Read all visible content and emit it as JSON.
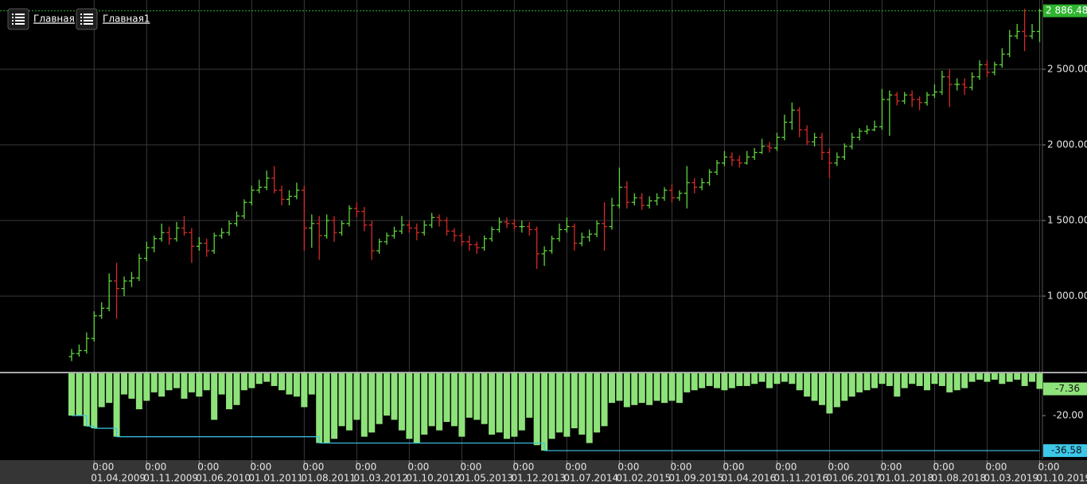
{
  "tabs": [
    "Главная",
    "Главная1"
  ],
  "chart_data": [
    {
      "type": "ohlc",
      "ohlc": [
        [
          600,
          650,
          570,
          620
        ],
        [
          620,
          680,
          600,
          640
        ],
        [
          640,
          760,
          620,
          720
        ],
        [
          720,
          900,
          700,
          870
        ],
        [
          870,
          960,
          850,
          920
        ],
        [
          920,
          1150,
          900,
          1100
        ],
        [
          1100,
          1220,
          850,
          1050
        ],
        [
          1050,
          1130,
          1000,
          1100
        ],
        [
          1100,
          1160,
          1060,
          1120
        ],
        [
          1120,
          1280,
          1100,
          1250
        ],
        [
          1250,
          1360,
          1230,
          1320
        ],
        [
          1320,
          1400,
          1290,
          1380
        ],
        [
          1380,
          1480,
          1360,
          1420
        ],
        [
          1420,
          1460,
          1340,
          1380
        ],
        [
          1380,
          1490,
          1360,
          1450
        ],
        [
          1450,
          1530,
          1400,
          1420
        ],
        [
          1420,
          1450,
          1220,
          1330
        ],
        [
          1330,
          1390,
          1300,
          1350
        ],
        [
          1350,
          1380,
          1260,
          1300
        ],
        [
          1300,
          1420,
          1280,
          1400
        ],
        [
          1400,
          1450,
          1380,
          1420
        ],
        [
          1420,
          1500,
          1400,
          1480
        ],
        [
          1480,
          1560,
          1460,
          1530
        ],
        [
          1530,
          1640,
          1510,
          1620
        ],
        [
          1620,
          1730,
          1600,
          1700
        ],
        [
          1700,
          1770,
          1680,
          1720
        ],
        [
          1720,
          1830,
          1700,
          1780
        ],
        [
          1780,
          1860,
          1680,
          1700
        ],
        [
          1700,
          1730,
          1600,
          1640
        ],
        [
          1640,
          1700,
          1600,
          1660
        ],
        [
          1660,
          1750,
          1640,
          1700
        ],
        [
          1700,
          1730,
          1300,
          1450
        ],
        [
          1450,
          1540,
          1320,
          1480
        ],
        [
          1480,
          1530,
          1240,
          1400
        ],
        [
          1400,
          1540,
          1380,
          1500
        ],
        [
          1500,
          1530,
          1360,
          1420
        ],
        [
          1420,
          1500,
          1400,
          1480
        ],
        [
          1480,
          1600,
          1460,
          1580
        ],
        [
          1580,
          1620,
          1520,
          1560
        ],
        [
          1560,
          1590,
          1430,
          1470
        ],
        [
          1470,
          1500,
          1240,
          1300
        ],
        [
          1300,
          1380,
          1280,
          1360
        ],
        [
          1360,
          1420,
          1340,
          1400
        ],
        [
          1400,
          1460,
          1380,
          1430
        ],
        [
          1430,
          1530,
          1410,
          1470
        ],
        [
          1470,
          1500,
          1420,
          1450
        ],
        [
          1450,
          1480,
          1370,
          1420
        ],
        [
          1420,
          1500,
          1400,
          1470
        ],
        [
          1470,
          1550,
          1450,
          1520
        ],
        [
          1520,
          1540,
          1460,
          1500
        ],
        [
          1500,
          1520,
          1400,
          1430
        ],
        [
          1430,
          1450,
          1360,
          1400
        ],
        [
          1400,
          1420,
          1330,
          1360
        ],
        [
          1360,
          1400,
          1300,
          1340
        ],
        [
          1340,
          1360,
          1280,
          1320
        ],
        [
          1320,
          1400,
          1300,
          1380
        ],
        [
          1380,
          1460,
          1360,
          1440
        ],
        [
          1440,
          1520,
          1420,
          1490
        ],
        [
          1490,
          1520,
          1450,
          1480
        ],
        [
          1480,
          1510,
          1440,
          1460
        ],
        [
          1460,
          1500,
          1420,
          1460
        ],
        [
          1460,
          1490,
          1400,
          1440
        ],
        [
          1440,
          1460,
          1180,
          1280
        ],
        [
          1280,
          1330,
          1200,
          1300
        ],
        [
          1300,
          1400,
          1280,
          1380
        ],
        [
          1380,
          1480,
          1360,
          1440
        ],
        [
          1440,
          1520,
          1420,
          1460
        ],
        [
          1460,
          1480,
          1300,
          1350
        ],
        [
          1350,
          1420,
          1330,
          1390
        ],
        [
          1390,
          1440,
          1360,
          1410
        ],
        [
          1410,
          1500,
          1390,
          1480
        ],
        [
          1480,
          1620,
          1300,
          1460
        ],
        [
          1460,
          1650,
          1440,
          1600
        ],
        [
          1600,
          1850,
          1580,
          1720
        ],
        [
          1720,
          1760,
          1580,
          1620
        ],
        [
          1620,
          1680,
          1600,
          1650
        ],
        [
          1650,
          1680,
          1570,
          1600
        ],
        [
          1600,
          1660,
          1580,
          1630
        ],
        [
          1630,
          1680,
          1600,
          1650
        ],
        [
          1650,
          1720,
          1630,
          1700
        ],
        [
          1700,
          1740,
          1620,
          1650
        ],
        [
          1650,
          1700,
          1630,
          1680
        ],
        [
          1680,
          1860,
          1580,
          1750
        ],
        [
          1750,
          1780,
          1680,
          1720
        ],
        [
          1720,
          1780,
          1700,
          1750
        ],
        [
          1750,
          1840,
          1730,
          1820
        ],
        [
          1820,
          1900,
          1800,
          1880
        ],
        [
          1880,
          1960,
          1860,
          1920
        ],
        [
          1920,
          1950,
          1860,
          1900
        ],
        [
          1900,
          1930,
          1850,
          1880
        ],
        [
          1880,
          1960,
          1870,
          1920
        ],
        [
          1920,
          1980,
          1900,
          1950
        ],
        [
          1950,
          2040,
          1940,
          1990
        ],
        [
          1990,
          2020,
          1950,
          1980
        ],
        [
          1980,
          2080,
          1960,
          2050
        ],
        [
          2050,
          2200,
          2030,
          2150
        ],
        [
          2150,
          2280,
          2100,
          2230
        ],
        [
          2230,
          2250,
          2050,
          2100
        ],
        [
          2100,
          2130,
          2000,
          2020
        ],
        [
          2020,
          2080,
          1990,
          2050
        ],
        [
          2050,
          2080,
          1900,
          1950
        ],
        [
          1950,
          1980,
          1780,
          1880
        ],
        [
          1880,
          1950,
          1860,
          1920
        ],
        [
          1920,
          2010,
          1900,
          1990
        ],
        [
          1990,
          2080,
          1970,
          2050
        ],
        [
          2050,
          2110,
          2030,
          2090
        ],
        [
          2090,
          2130,
          2070,
          2100
        ],
        [
          2100,
          2160,
          2090,
          2120
        ],
        [
          2120,
          2370,
          2100,
          2300
        ],
        [
          2300,
          2360,
          2060,
          2330
        ],
        [
          2330,
          2350,
          2260,
          2290
        ],
        [
          2290,
          2350,
          2270,
          2330
        ],
        [
          2330,
          2360,
          2250,
          2300
        ],
        [
          2300,
          2320,
          2230,
          2280
        ],
        [
          2280,
          2350,
          2260,
          2330
        ],
        [
          2330,
          2400,
          2310,
          2350
        ],
        [
          2350,
          2490,
          2330,
          2450
        ],
        [
          2450,
          2500,
          2250,
          2400
        ],
        [
          2400,
          2440,
          2360,
          2400
        ],
        [
          2400,
          2440,
          2330,
          2380
        ],
        [
          2380,
          2480,
          2360,
          2450
        ],
        [
          2450,
          2560,
          2430,
          2530
        ],
        [
          2530,
          2560,
          2450,
          2480
        ],
        [
          2480,
          2550,
          2460,
          2530
        ],
        [
          2530,
          2640,
          2510,
          2600
        ],
        [
          2600,
          2760,
          2580,
          2720
        ],
        [
          2720,
          2800,
          2700,
          2750
        ],
        [
          2750,
          2900,
          2620,
          2720
        ],
        [
          2720,
          2800,
          2700,
          2750
        ],
        [
          2750,
          2900,
          2680,
          2886.48
        ]
      ],
      "up_color": "#5fd43c",
      "down_color": "#d42a2a",
      "last_close_label": "2 886.48",
      "last_color": "#2fb52f",
      "ylim": [
        500,
        2958
      ],
      "yticks": [
        {
          "value": 1000,
          "label": "1 000.00"
        },
        {
          "value": 1500,
          "label": "1 500.00"
        },
        {
          "value": 2000,
          "label": "2 000.00"
        },
        {
          "value": 2500,
          "label": "2 500.00"
        }
      ],
      "xlim": [
        -0.5,
        129.9
      ],
      "xticks": [
        {
          "value": 3,
          "label": [
            "0:00",
            "01.04.2009"
          ]
        },
        {
          "value": 10,
          "label": [
            "0:00",
            "01.11.2009"
          ]
        },
        {
          "value": 17,
          "label": [
            "0:00",
            "01.06.2010"
          ]
        },
        {
          "value": 24,
          "label": [
            "0:00",
            "01.01.2011"
          ]
        },
        {
          "value": 31,
          "label": [
            "0:00",
            "01.08.2011"
          ]
        },
        {
          "value": 38,
          "label": [
            "0:00",
            "01.03.2012"
          ]
        },
        {
          "value": 45,
          "label": [
            "0:00",
            "01.10.2012"
          ]
        },
        {
          "value": 52,
          "label": [
            "0:00",
            "01.05.2013"
          ]
        },
        {
          "value": 59,
          "label": [
            "0:00",
            "01.12.2013"
          ]
        },
        {
          "value": 66,
          "label": [
            "0:00",
            "01.07.2014"
          ]
        },
        {
          "value": 73,
          "label": [
            "0:00",
            "01.02.2015"
          ]
        },
        {
          "value": 80,
          "label": [
            "0:00",
            "01.09.2015"
          ]
        },
        {
          "value": 87,
          "label": [
            "0:00",
            "01.04.2016"
          ]
        },
        {
          "value": 94,
          "label": [
            "0:00",
            "01.11.2016"
          ]
        },
        {
          "value": 101,
          "label": [
            "0:00",
            "01.06.2017"
          ]
        },
        {
          "value": 108,
          "label": [
            "0:00",
            "01.01.2018"
          ]
        },
        {
          "value": 115,
          "label": [
            "0:00",
            "01.08.2018"
          ]
        },
        {
          "value": 122,
          "label": [
            "0:00",
            "01.03.2019"
          ]
        },
        {
          "value": 129,
          "label": [
            "0:00",
            "01.10.2019"
          ]
        }
      ],
      "grid": true
    },
    {
      "type": "drawdown",
      "values": [
        -20,
        -20,
        -25,
        -26,
        -16,
        -14,
        -30,
        -10,
        -12,
        -17,
        -13,
        -9,
        -11,
        -8,
        -7,
        -12,
        -9,
        -11,
        -8,
        -22,
        -10,
        -17,
        -15,
        -8,
        -7,
        -5,
        -4,
        -6,
        -8,
        -10,
        -11,
        -16,
        -10,
        -33,
        -33,
        -31,
        -25,
        -27,
        -22,
        -30,
        -28,
        -24,
        -20,
        -22,
        -27,
        -31,
        -33,
        -29,
        -25,
        -27,
        -23,
        -25,
        -30,
        -21,
        -22,
        -24,
        -29,
        -28,
        -31,
        -30,
        -27,
        -21,
        -34,
        -36.58,
        -31,
        -28,
        -30,
        -26,
        -29,
        -33,
        -28,
        -25,
        -14,
        -13,
        -16,
        -15,
        -14,
        -15,
        -13,
        -14,
        -13,
        -14,
        -9,
        -8,
        -7,
        -6,
        -7,
        -8,
        -7,
        -6,
        -6,
        -5,
        -4,
        -7,
        -5,
        -4,
        -5,
        -8,
        -11,
        -13,
        -15,
        -19,
        -16,
        -13,
        -11,
        -9,
        -8,
        -7,
        -5,
        -6,
        -11,
        -7,
        -5,
        -6,
        -8,
        -5,
        -6,
        -9,
        -8,
        -7,
        -4,
        -3,
        -4,
        -3,
        -5,
        -4,
        -3,
        -6,
        -4,
        -7.36
      ],
      "color": "#8ee27a",
      "max_drawdown": {
        "x": [
          0,
          2,
          3,
          6,
          33,
          63,
          129
        ],
        "values": [
          -20,
          -25,
          -26,
          -30,
          -33,
          -36.58,
          -36.58
        ],
        "color": "#3cc8e8"
      },
      "ylim": [
        -40.7,
        0
      ],
      "yticks": [
        {
          "value": -20,
          "label": "-20.00"
        }
      ]
    }
  ]
}
